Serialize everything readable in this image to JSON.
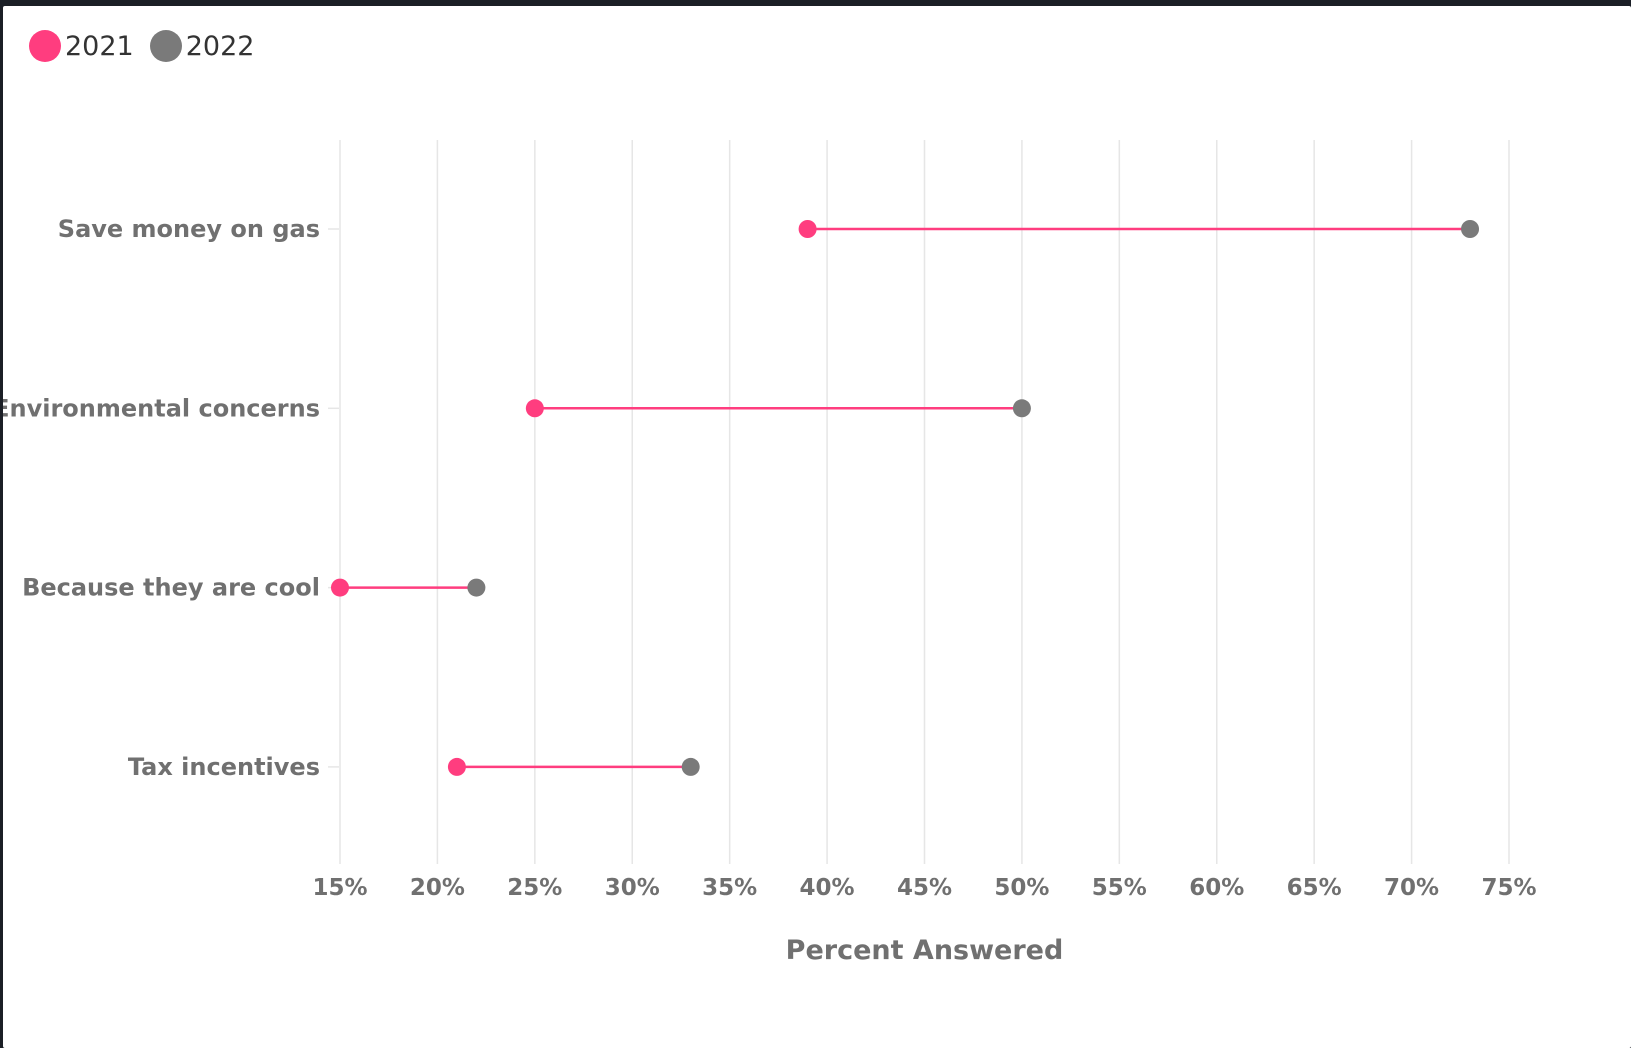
{
  "chart_data": {
    "type": "dumbbell",
    "categories": [
      "Save money on gas",
      "Environmental concerns",
      "Because they are cool",
      "Tax incentives"
    ],
    "series": [
      {
        "name": "2021",
        "color": "#ff3d7f",
        "values": [
          39,
          25,
          15,
          21
        ]
      },
      {
        "name": "2022",
        "color": "#7a7a7a",
        "values": [
          73,
          50,
          22,
          33
        ]
      }
    ],
    "connector_color": "#ff3d7f",
    "xlabel": "Percent Answered",
    "xlim": [
      15,
      75
    ],
    "x_ticks": [
      15,
      20,
      25,
      30,
      35,
      40,
      45,
      50,
      55,
      60,
      65,
      70,
      75
    ],
    "x_tick_labels": [
      "15%",
      "20%",
      "25%",
      "30%",
      "35%",
      "40%",
      "45%",
      "50%",
      "55%",
      "60%",
      "65%",
      "70%",
      "75%"
    ],
    "grid": true,
    "legend_position": "top-left"
  }
}
